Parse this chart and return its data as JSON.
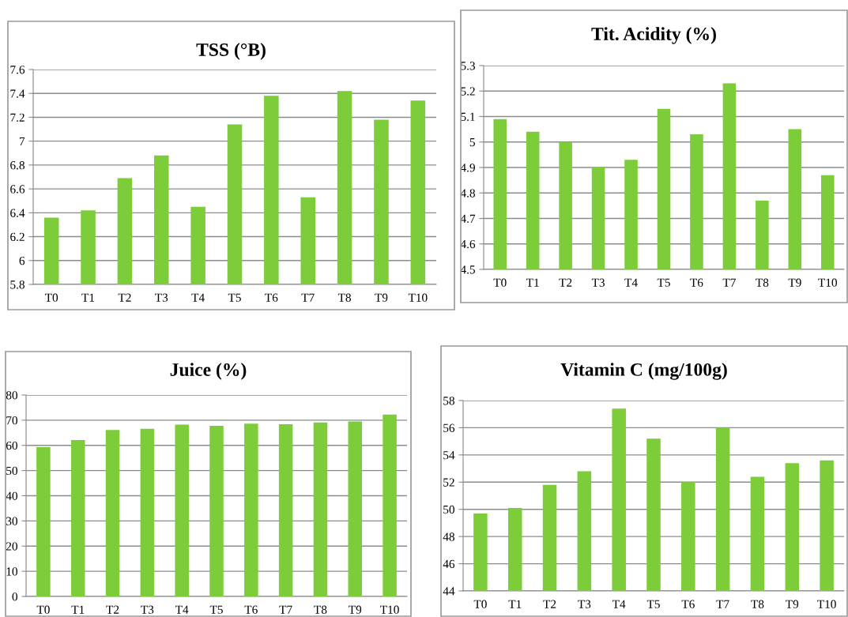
{
  "chart_data": [
    {
      "type": "bar",
      "title": "TSS (°B)",
      "categories": [
        "T0",
        "T1",
        "T2",
        "T3",
        "T4",
        "T5",
        "T6",
        "T7",
        "T8",
        "T9",
        "T10"
      ],
      "values": [
        6.36,
        6.42,
        6.69,
        6.88,
        6.45,
        7.14,
        7.38,
        6.53,
        7.42,
        7.18,
        7.34
      ],
      "color": "#7ccd39",
      "ylim": [
        5.8,
        7.6
      ],
      "yticks": [
        5.8,
        6,
        6.2,
        6.4,
        6.6,
        6.8,
        7,
        7.2,
        7.4,
        7.6
      ],
      "grid": "y"
    },
    {
      "type": "bar",
      "title": "Tit. Acidity (%)",
      "categories": [
        "T0",
        "T1",
        "T2",
        "T3",
        "T4",
        "T5",
        "T6",
        "T7",
        "T8",
        "T9",
        "T10"
      ],
      "values": [
        5.09,
        5.04,
        5.0,
        4.9,
        4.93,
        5.13,
        5.03,
        5.23,
        4.77,
        5.05,
        4.87
      ],
      "color": "#7ccd39",
      "ylim": [
        4.5,
        5.3
      ],
      "yticks": [
        4.5,
        4.6,
        4.7,
        4.8,
        4.9,
        5,
        5.1,
        5.2,
        5.3
      ],
      "grid": "y"
    },
    {
      "type": "bar",
      "title": "Juice (%)",
      "categories": [
        "T0",
        "T1",
        "T2",
        "T3",
        "T4",
        "T5",
        "T6",
        "T7",
        "T8",
        "T9",
        "T10"
      ],
      "values": [
        59.3,
        62.1,
        66.1,
        66.6,
        68.2,
        67.8,
        68.6,
        68.4,
        69.1,
        69.5,
        72.2
      ],
      "color": "#7ccd39",
      "ylim": [
        0,
        80
      ],
      "yticks": [
        0,
        10,
        20,
        30,
        40,
        50,
        60,
        70,
        80
      ],
      "grid": "y"
    },
    {
      "type": "bar",
      "title": "Vitamin C (mg/100g)",
      "categories": [
        "T0",
        "T1",
        "T2",
        "T3",
        "T4",
        "T5",
        "T6",
        "T7",
        "T8",
        "T9",
        "T10"
      ],
      "values": [
        49.7,
        50.1,
        51.8,
        52.8,
        57.4,
        55.2,
        52.0,
        56.0,
        52.4,
        53.4,
        53.6
      ],
      "color": "#7ccd39",
      "ylim": [
        44,
        58
      ],
      "yticks": [
        44,
        46,
        48,
        50,
        52,
        54,
        56,
        58
      ],
      "grid": "y"
    }
  ]
}
